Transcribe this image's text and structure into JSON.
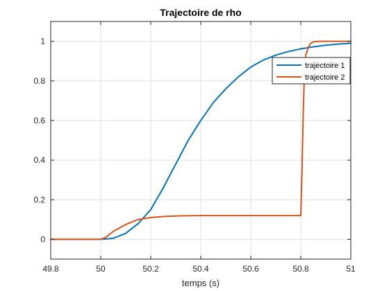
{
  "chart_data": {
    "type": "line",
    "title": "Trajectoire de rho",
    "xlabel": "temps (s)",
    "ylabel": "",
    "xlim": [
      49.8,
      51.0
    ],
    "ylim": [
      -0.1,
      1.1
    ],
    "xticks": [
      49.8,
      50.0,
      50.2,
      50.4,
      50.6,
      50.8,
      51.0
    ],
    "xtick_labels": [
      "49.8",
      "50",
      "50.2",
      "50.4",
      "50.6",
      "50.8",
      "51"
    ],
    "yticks": [
      0,
      0.2,
      0.4,
      0.6,
      0.8,
      1.0
    ],
    "ytick_labels": [
      "0",
      "0.2",
      "0.4",
      "0.6",
      "0.8",
      "1"
    ],
    "grid": true,
    "legend_position": "top-right",
    "series": [
      {
        "name": "trajectoire 1",
        "color": "#0072BD",
        "x": [
          49.8,
          50.0,
          50.05,
          50.1,
          50.15,
          50.2,
          50.25,
          50.3,
          50.35,
          50.4,
          50.45,
          50.5,
          50.55,
          50.6,
          50.65,
          50.7,
          50.75,
          50.8,
          50.85,
          50.9,
          50.95,
          51.0
        ],
        "y": [
          0,
          0,
          0.005,
          0.03,
          0.08,
          0.15,
          0.26,
          0.38,
          0.5,
          0.6,
          0.69,
          0.76,
          0.82,
          0.87,
          0.905,
          0.93,
          0.948,
          0.962,
          0.972,
          0.98,
          0.986,
          0.99
        ]
      },
      {
        "name": "trajectoire 2",
        "color": "#D95319",
        "x": [
          49.8,
          50.0,
          50.02,
          50.05,
          50.1,
          50.15,
          50.2,
          50.25,
          50.3,
          50.4,
          50.5,
          50.6,
          50.7,
          50.79,
          50.8,
          50.805,
          50.81,
          50.815,
          50.82,
          50.83,
          50.84,
          50.85,
          50.87,
          50.9,
          51.0
        ],
        "y": [
          0,
          0,
          0.01,
          0.04,
          0.075,
          0.1,
          0.11,
          0.115,
          0.118,
          0.12,
          0.12,
          0.12,
          0.12,
          0.12,
          0.12,
          0.35,
          0.65,
          0.85,
          0.93,
          0.97,
          0.99,
          0.997,
          1.0,
          1.0,
          1.0
        ]
      }
    ]
  }
}
